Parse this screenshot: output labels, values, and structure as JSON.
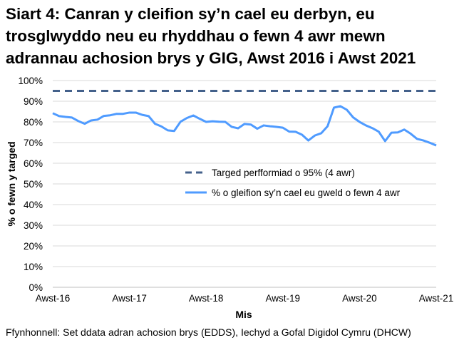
{
  "chart_data": {
    "type": "line",
    "title": "Siart 4: Canran y cleifion sy’n cael eu derbyn, eu trosglwyddo neu eu rhyddhau o fewn 4 awr mewn adrannau achosion brys y GIG, Awst 2016 i Awst 2021",
    "xlabel": "Mis",
    "ylabel": "% o fewn y targed",
    "ylim": [
      0,
      100
    ],
    "y_ticks": [
      "0%",
      "10%",
      "20%",
      "30%",
      "40%",
      "50%",
      "60%",
      "70%",
      "80%",
      "90%",
      "100%"
    ],
    "x_tick_labels": [
      "Awst-16",
      "Awst-17",
      "Awst-18",
      "Awst-19",
      "Awst-20",
      "Awst-21"
    ],
    "grid": "horizontal",
    "legend_position": "center-right",
    "series": [
      {
        "name": "Targed perfformiad o 95% (4 awr)",
        "color": "#44618b",
        "style": "dashed",
        "values": [
          95
        ]
      },
      {
        "name": "% o gleifion sy’n cael eu gweld o fewn 4 awr",
        "color": "#4f9bff",
        "style": "solid",
        "values": [
          84.2,
          82.8,
          82.4,
          82.1,
          80.4,
          79.1,
          80.7,
          81.1,
          82.9,
          83.2,
          83.9,
          83.9,
          84.5,
          84.5,
          83.4,
          82.8,
          79.1,
          77.8,
          75.9,
          75.6,
          80.1,
          81.9,
          83.1,
          81.5,
          80.0,
          80.3,
          80.1,
          80.0,
          77.6,
          76.9,
          79.0,
          78.7,
          76.7,
          78.3,
          77.9,
          77.6,
          77.2,
          75.3,
          75.2,
          73.8,
          71.0,
          73.4,
          74.5,
          77.9,
          86.9,
          87.6,
          85.9,
          82.2,
          80.0,
          78.3,
          77.0,
          75.3,
          70.7,
          74.8,
          74.9,
          76.3,
          74.3,
          71.8,
          71.0,
          69.9,
          68.6
        ]
      }
    ],
    "source": "Ffynhonnell: Set ddata adran achosion brys (EDDS), Iechyd a Gofal Digidol Cymru (DHCW)"
  }
}
